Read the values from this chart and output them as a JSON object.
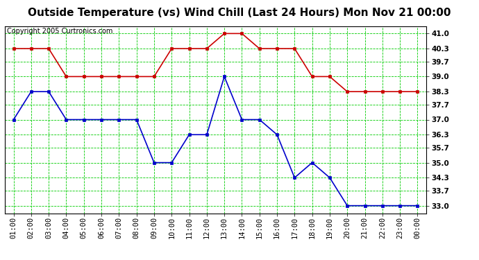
{
  "title": "Outside Temperature (vs) Wind Chill (Last 24 Hours) Mon Nov 21 00:00",
  "copyright": "Copyright 2005 Curtronics.com",
  "x_labels": [
    "01:00",
    "02:00",
    "03:00",
    "04:00",
    "05:00",
    "06:00",
    "07:00",
    "08:00",
    "09:00",
    "10:00",
    "11:00",
    "12:00",
    "13:00",
    "14:00",
    "15:00",
    "16:00",
    "17:00",
    "18:00",
    "19:00",
    "20:00",
    "21:00",
    "22:00",
    "23:00",
    "00:00"
  ],
  "red_data": [
    40.3,
    40.3,
    40.3,
    39.0,
    39.0,
    39.0,
    39.0,
    39.0,
    39.0,
    40.3,
    40.3,
    40.3,
    41.0,
    41.0,
    40.3,
    40.3,
    40.3,
    39.0,
    39.0,
    38.3,
    38.3,
    38.3,
    38.3,
    38.3
  ],
  "blue_data": [
    37.0,
    38.3,
    38.3,
    37.0,
    37.0,
    37.0,
    37.0,
    37.0,
    35.0,
    35.0,
    36.3,
    36.3,
    39.0,
    37.0,
    37.0,
    36.3,
    34.3,
    35.0,
    34.3,
    33.0,
    33.0,
    33.0,
    33.0,
    33.0
  ],
  "red_color": "#cc0000",
  "blue_color": "#0000cc",
  "bg_color": "#ffffff",
  "plot_bg_color": "#ffffff",
  "grid_color": "#00cc00",
  "yticks": [
    33.0,
    33.7,
    34.3,
    35.0,
    35.7,
    36.3,
    37.0,
    37.7,
    38.3,
    39.0,
    39.7,
    40.3,
    41.0
  ],
  "ylim_min": 32.65,
  "ylim_max": 41.35,
  "title_fontsize": 11,
  "copyright_fontsize": 7,
  "tick_fontsize": 7.5,
  "marker_size": 3,
  "line_width": 1.2
}
